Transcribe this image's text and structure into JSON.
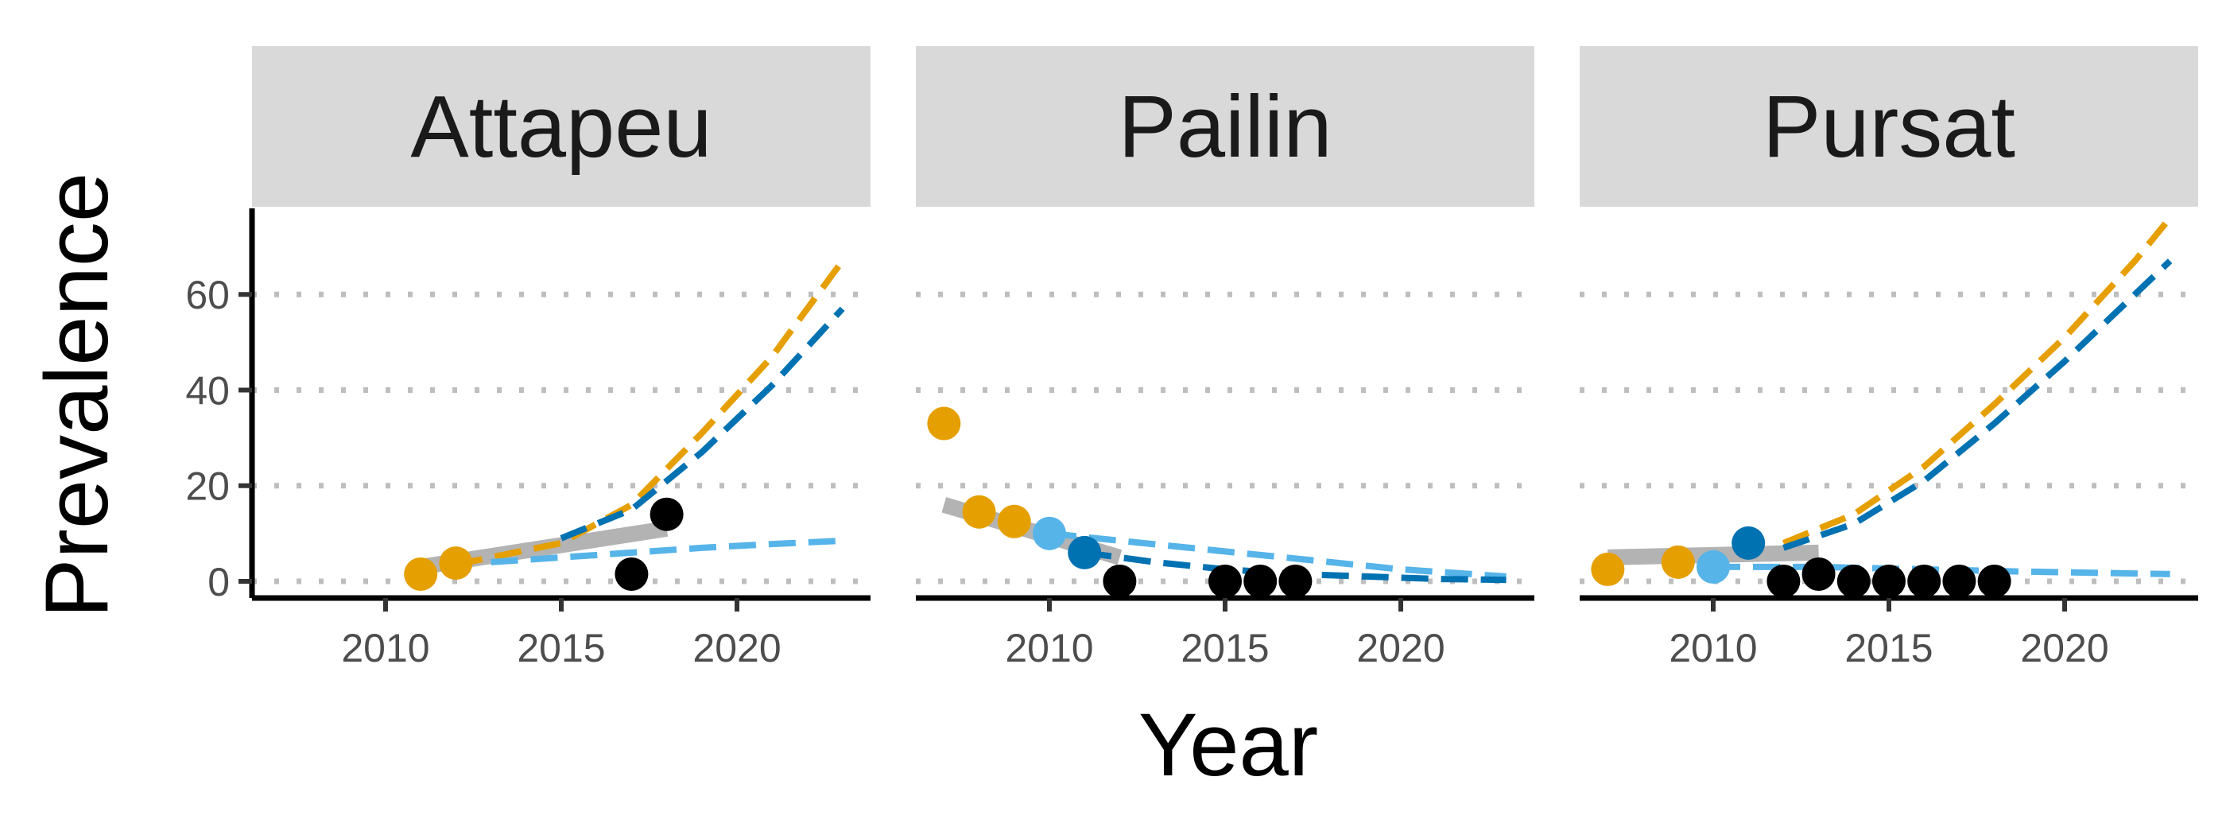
{
  "chart_data": {
    "type": "scatter",
    "xlabel": "Year",
    "ylabel": "Prevalence",
    "xlim": [
      2006.2,
      2023.8
    ],
    "ylim": [
      -3.5,
      78
    ],
    "x_ticks": [
      2010,
      2015,
      2020
    ],
    "y_ticks": [
      0,
      20,
      40,
      60
    ],
    "grid": "horizontal-dotted",
    "colors": {
      "orange": "#E69F00",
      "dark_blue": "#0072B2",
      "light_blue": "#56B4E9",
      "black": "#000000",
      "gray_fit": "#B3B3B3",
      "strip_bg": "#D9D9D9",
      "grid": "#BEBEBE"
    },
    "panels": [
      {
        "title": "Attapeu",
        "show_y_axis": true,
        "fit_line": [
          [
            2011,
            3
          ],
          [
            2018,
            11
          ]
        ],
        "projections": [
          {
            "color": "orange",
            "points": [
              [
                2012,
                3.5
              ],
              [
                2015,
                8
              ],
              [
                2017,
                16
              ],
              [
                2019,
                31
              ],
              [
                2021,
                47
              ],
              [
                2023,
                67
              ]
            ]
          },
          {
            "color": "dark_blue",
            "points": [
              [
                2015,
                9
              ],
              [
                2017,
                15
              ],
              [
                2019,
                27
              ],
              [
                2021,
                41
              ],
              [
                2023,
                57
              ]
            ]
          },
          {
            "color": "light_blue",
            "points": [
              [
                2013,
                4
              ],
              [
                2015,
                5
              ],
              [
                2017,
                6
              ],
              [
                2019,
                7
              ],
              [
                2021,
                7.8
              ],
              [
                2023,
                8.5
              ]
            ]
          }
        ],
        "points": [
          {
            "x": 2011,
            "y": 1.5,
            "color": "orange"
          },
          {
            "x": 2012,
            "y": 3.8,
            "color": "orange"
          },
          {
            "x": 2017,
            "y": 1.5,
            "color": "black"
          },
          {
            "x": 2018,
            "y": 14,
            "color": "black"
          }
        ]
      },
      {
        "title": "Pailin",
        "show_y_axis": false,
        "fit_line": [
          [
            2007,
            16
          ],
          [
            2012,
            5
          ]
        ],
        "projections": [
          {
            "color": "light_blue",
            "points": [
              [
                2010,
                10
              ],
              [
                2012,
                8.5
              ],
              [
                2014,
                7
              ],
              [
                2016,
                5.5
              ],
              [
                2018,
                4
              ],
              [
                2020,
                2.5
              ],
              [
                2022,
                1.5
              ],
              [
                2023,
                1
              ]
            ]
          },
          {
            "color": "dark_blue",
            "points": [
              [
                2011,
                6
              ],
              [
                2013,
                4
              ],
              [
                2015,
                2.5
              ],
              [
                2017,
                1.5
              ],
              [
                2019,
                1
              ],
              [
                2021,
                0.5
              ],
              [
                2023,
                0.3
              ]
            ]
          }
        ],
        "points": [
          {
            "x": 2007,
            "y": 33,
            "color": "orange"
          },
          {
            "x": 2008,
            "y": 14.5,
            "color": "orange"
          },
          {
            "x": 2009,
            "y": 12.5,
            "color": "orange"
          },
          {
            "x": 2010,
            "y": 10,
            "color": "light_blue"
          },
          {
            "x": 2011,
            "y": 6,
            "color": "dark_blue"
          },
          {
            "x": 2012,
            "y": 0,
            "color": "black"
          },
          {
            "x": 2015,
            "y": 0,
            "color": "black"
          },
          {
            "x": 2016,
            "y": 0,
            "color": "black"
          },
          {
            "x": 2017,
            "y": 0,
            "color": "black"
          }
        ]
      },
      {
        "title": "Pursat",
        "show_y_axis": false,
        "fit_line": [
          [
            2007,
            5
          ],
          [
            2013,
            6
          ]
        ],
        "projections": [
          {
            "color": "orange",
            "points": [
              [
                2012,
                8
              ],
              [
                2014,
                14
              ],
              [
                2016,
                24
              ],
              [
                2018,
                37
              ],
              [
                2020,
                51
              ],
              [
                2022,
                67
              ],
              [
                2023,
                76
              ]
            ]
          },
          {
            "color": "dark_blue",
            "points": [
              [
                2012,
                7
              ],
              [
                2014,
                12
              ],
              [
                2016,
                21
              ],
              [
                2018,
                33
              ],
              [
                2020,
                46
              ],
              [
                2022,
                60
              ],
              [
                2023,
                67
              ]
            ]
          },
          {
            "color": "light_blue",
            "points": [
              [
                2010,
                3
              ],
              [
                2013,
                3
              ],
              [
                2016,
                2.5
              ],
              [
                2019,
                2
              ],
              [
                2023,
                1.5
              ]
            ]
          }
        ],
        "points": [
          {
            "x": 2007,
            "y": 2.5,
            "color": "orange"
          },
          {
            "x": 2009,
            "y": 4,
            "color": "orange"
          },
          {
            "x": 2010,
            "y": 3,
            "color": "light_blue"
          },
          {
            "x": 2011,
            "y": 8,
            "color": "dark_blue"
          },
          {
            "x": 2012,
            "y": 0,
            "color": "black"
          },
          {
            "x": 2013,
            "y": 1.5,
            "color": "black"
          },
          {
            "x": 2014,
            "y": 0,
            "color": "black"
          },
          {
            "x": 2015,
            "y": 0,
            "color": "black"
          },
          {
            "x": 2016,
            "y": 0,
            "color": "black"
          },
          {
            "x": 2017,
            "y": 0,
            "color": "black"
          },
          {
            "x": 2018,
            "y": 0,
            "color": "black"
          }
        ]
      }
    ]
  }
}
